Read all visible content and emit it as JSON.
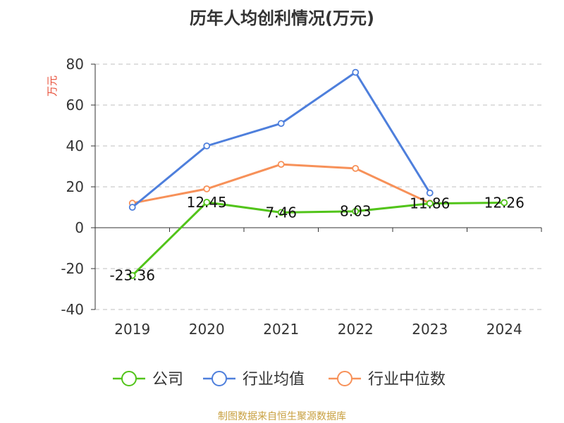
{
  "chart_data": {
    "type": "line",
    "title": "历年人均创利情况(万元)",
    "ylabel": "万元",
    "xlabel": "",
    "categories": [
      "2019",
      "2020",
      "2021",
      "2022",
      "2023",
      "2024"
    ],
    "ylim": [
      -40,
      80
    ],
    "yticks": [
      -40,
      -20,
      0,
      20,
      40,
      60,
      80
    ],
    "grid": true,
    "legend_position": "bottom",
    "series": [
      {
        "name": "公司",
        "color": "#52c41a",
        "values": [
          -23.36,
          12.45,
          7.46,
          8.03,
          11.86,
          12.26
        ],
        "labels": [
          "-23.36",
          "12.45",
          "7.46",
          "8.03",
          "11.86",
          "12.26"
        ]
      },
      {
        "name": "行业均值",
        "color": "#4e7fdc",
        "values": [
          10,
          40,
          51,
          76,
          17,
          null
        ]
      },
      {
        "name": "行业中位数",
        "color": "#f79159",
        "values": [
          12,
          19,
          31,
          29,
          12,
          null
        ]
      }
    ]
  },
  "source": "制图数据来自恒生聚源数据库"
}
